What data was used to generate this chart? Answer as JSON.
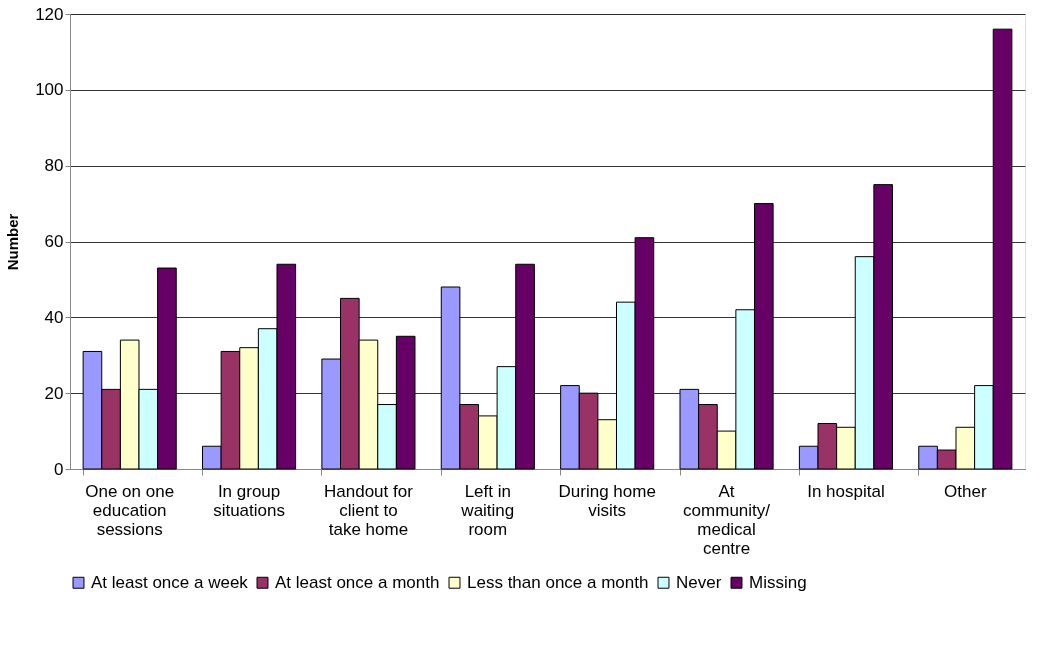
{
  "chart_data": {
    "type": "bar",
    "ylabel": "Number",
    "categories": [
      "One on one education sessions",
      "In group situations",
      "Handout for client to take home",
      "Left in waiting room",
      "During home visits",
      "At community/ medical centre",
      "In hospital",
      "Other"
    ],
    "series": [
      {
        "name": "At least once a week",
        "color": "#9999ff",
        "values": [
          31,
          6,
          29,
          48,
          22,
          21,
          6,
          6
        ]
      },
      {
        "name": "At least once a month",
        "color": "#993366",
        "values": [
          21,
          31,
          45,
          17,
          20,
          17,
          12,
          5
        ]
      },
      {
        "name": "Less than once a month",
        "color": "#ffffcc",
        "values": [
          34,
          32,
          34,
          14,
          13,
          10,
          11,
          11
        ]
      },
      {
        "name": "Never",
        "color": "#ccffff",
        "values": [
          21,
          37,
          17,
          27,
          44,
          42,
          56,
          22
        ]
      },
      {
        "name": "Missing",
        "color": "#660066",
        "values": [
          53,
          54,
          35,
          54,
          61,
          70,
          75,
          116
        ]
      }
    ],
    "ylim": [
      0,
      120
    ],
    "yticks": [
      0,
      20,
      40,
      60,
      80,
      100,
      120
    ],
    "grid": "y",
    "legend": "bottom"
  }
}
